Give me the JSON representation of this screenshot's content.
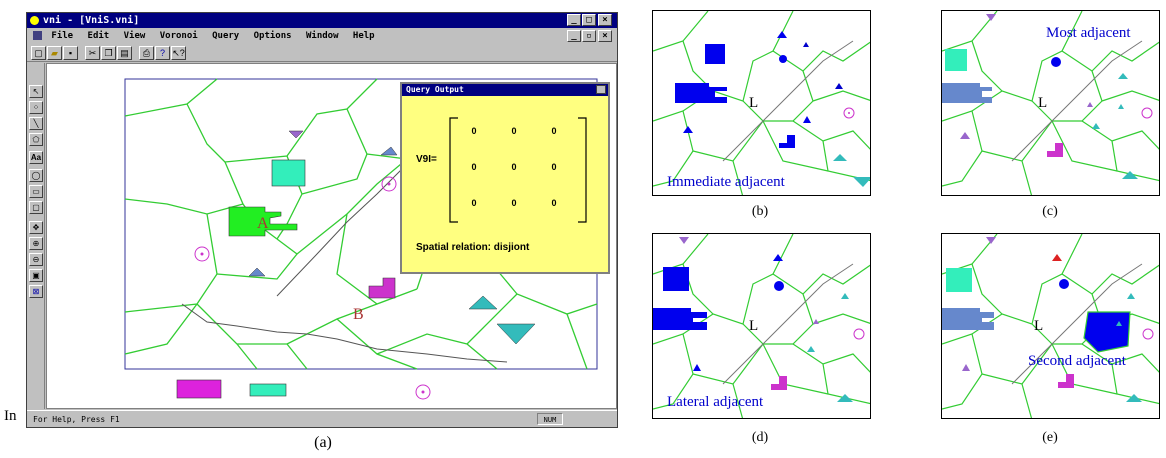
{
  "window": {
    "title": "vni - [VniS.vni]",
    "menu": [
      "File",
      "Edit",
      "View",
      "Voronoi",
      "Query",
      "Options",
      "Window",
      "Help"
    ],
    "status": "For Help, Press F1",
    "status_right": "NUM"
  },
  "query_output": {
    "title": "Query Output",
    "matrix_label": "V9I=",
    "matrix": [
      [
        "0",
        "0",
        "0"
      ],
      [
        "0",
        "0",
        "0"
      ],
      [
        "0",
        "0",
        "0"
      ]
    ],
    "relation": "Spatial relation: disjiont"
  },
  "map_a": {
    "label_a": "A",
    "label_b": "B"
  },
  "overlap_text": "In",
  "panels": {
    "b": {
      "text": "Immediate  adjacent",
      "line_label": "L"
    },
    "c": {
      "text": "Most adjacent",
      "line_label": "L"
    },
    "d": {
      "text": "Lateral   adjacent",
      "line_label": "L"
    },
    "e": {
      "text": "Second adjacent",
      "line_label": "L"
    }
  },
  "captions": {
    "a": "(a)",
    "b": "(b)",
    "c": "(c)",
    "d": "(d)",
    "e": "(e)"
  },
  "colors": {
    "voronoi_edge": "#33cc33",
    "teal": "#33eebb",
    "blue": "#0000ee",
    "steel": "#6688cc",
    "magenta": "#cc33cc",
    "purple": "#9966cc",
    "green": "#22ee22",
    "dialog_bg": "#ffff80"
  }
}
